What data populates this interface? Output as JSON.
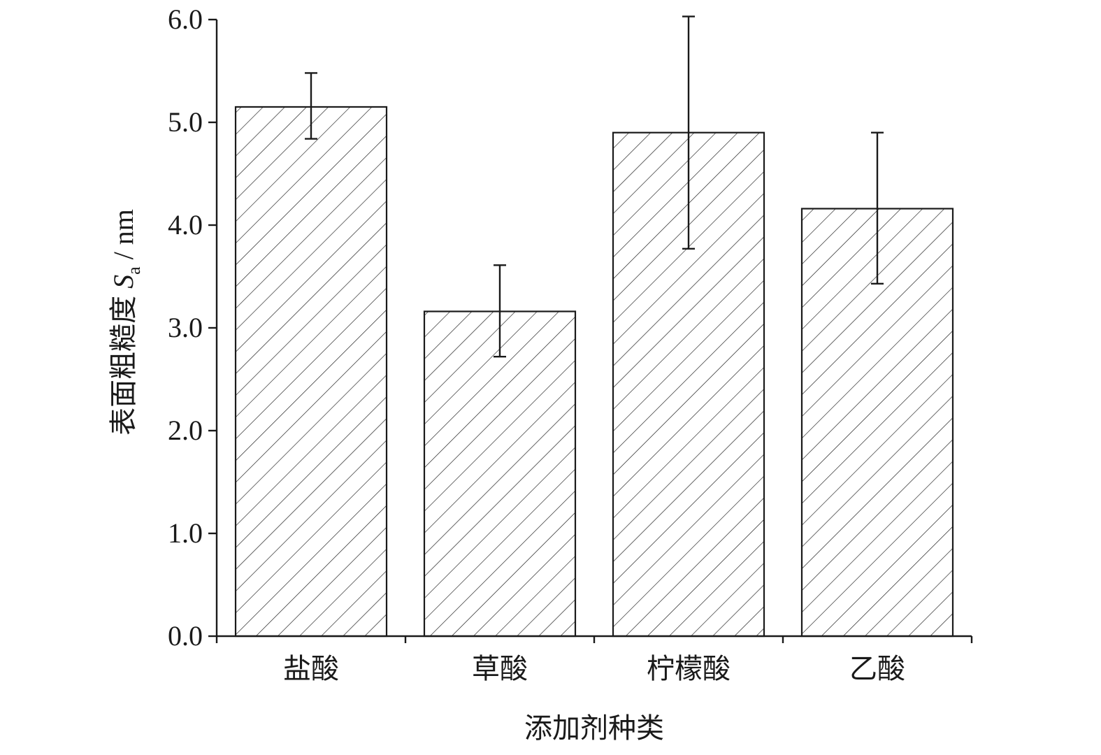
{
  "chart_data": {
    "type": "bar",
    "xlabel": "添加剂种类",
    "ylabel": {
      "prefix": "表面粗糙度 ",
      "symbol": "S",
      "subscript": "a",
      "suffix": " / nm"
    },
    "ylim": [
      0,
      6.0
    ],
    "yticks": [
      "0.0",
      "1.0",
      "2.0",
      "3.0",
      "4.0",
      "5.0",
      "6.0"
    ],
    "categories": [
      "盐酸",
      "草酸",
      "柠檬酸",
      "乙酸"
    ],
    "values": [
      5.15,
      3.16,
      4.9,
      4.16
    ],
    "error_low": [
      4.84,
      2.72,
      3.77,
      3.43
    ],
    "error_high": [
      5.48,
      3.61,
      6.03,
      4.9
    ],
    "fill": "diagonal hatch",
    "colors": {
      "stroke": "#1a1a1a",
      "fill": "#ffffff"
    },
    "grid": false,
    "legend": "none"
  }
}
